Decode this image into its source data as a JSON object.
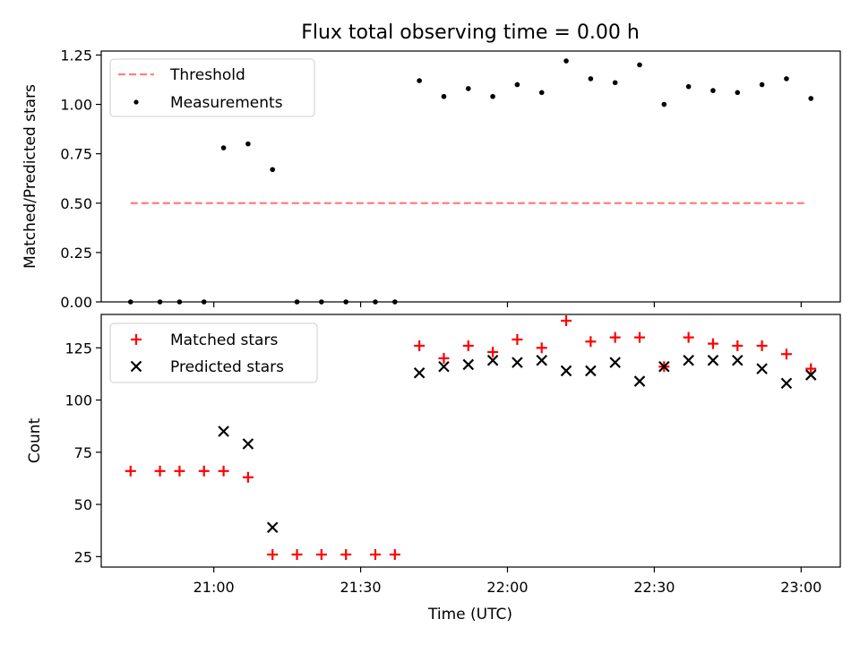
{
  "figure": {
    "title": "Flux total observing time = 0.00 h",
    "xlabel": "Time (UTC)"
  },
  "colors": {
    "threshold": "#ff7f7f",
    "measurement": "#000000",
    "matched": "#ff0000",
    "predicted": "#000000"
  },
  "chart_data": [
    {
      "type": "scatter",
      "title": "Flux total observing time = 0.00 h",
      "ylabel": "Matched/Predicted stars",
      "xlim": [
        "20:37",
        "23:08"
      ],
      "ylim": [
        0,
        1.27
      ],
      "yticks": [
        0.0,
        0.25,
        0.5,
        0.75,
        1.0,
        1.25
      ],
      "ytick_labels": [
        "0.00",
        "0.25",
        "0.50",
        "0.75",
        "1.00",
        "1.25"
      ],
      "legend": "upper-left",
      "threshold": {
        "name": "Threshold",
        "style": "dashed",
        "value": 0.5,
        "x": [
          "20:43",
          "23:01"
        ]
      },
      "series": [
        {
          "name": "Measurements",
          "marker": "dot",
          "x": [
            "20:43",
            "20:49",
            "20:53",
            "20:58",
            "21:02",
            "21:07",
            "21:12",
            "21:17",
            "21:22",
            "21:27",
            "21:33",
            "21:37",
            "21:42",
            "21:47",
            "21:52",
            "21:57",
            "22:02",
            "22:07",
            "22:12",
            "22:17",
            "22:22",
            "22:27",
            "22:32",
            "22:37",
            "22:42",
            "22:47",
            "22:52",
            "22:57",
            "23:02"
          ],
          "values": [
            0,
            0,
            0,
            0,
            0.78,
            0.8,
            0.67,
            0,
            0,
            0,
            0,
            0,
            1.12,
            1.04,
            1.08,
            1.04,
            1.1,
            1.06,
            1.22,
            1.13,
            1.11,
            1.2,
            1.0,
            1.09,
            1.07,
            1.06,
            1.1,
            1.13,
            1.03
          ]
        }
      ]
    },
    {
      "type": "scatter",
      "ylabel": "Count",
      "xlabel": "Time (UTC)",
      "xlim": [
        "20:37",
        "23:08"
      ],
      "ylim": [
        20,
        141
      ],
      "yticks": [
        25,
        50,
        75,
        100,
        125
      ],
      "xticks": [
        "21:00",
        "21:30",
        "22:00",
        "22:30",
        "23:00"
      ],
      "legend": "upper-left",
      "series": [
        {
          "name": "Matched stars",
          "marker": "plus",
          "x": [
            "20:43",
            "20:49",
            "20:53",
            "20:58",
            "21:02",
            "21:07",
            "21:12",
            "21:17",
            "21:22",
            "21:27",
            "21:33",
            "21:37",
            "21:42",
            "21:47",
            "21:52",
            "21:57",
            "22:02",
            "22:07",
            "22:12",
            "22:17",
            "22:22",
            "22:27",
            "22:32",
            "22:37",
            "22:42",
            "22:47",
            "22:52",
            "22:57",
            "23:02"
          ],
          "values": [
            66,
            66,
            66,
            66,
            66,
            63,
            26,
            26,
            26,
            26,
            26,
            26,
            126,
            120,
            126,
            123,
            129,
            125,
            138,
            128,
            130,
            130,
            116,
            130,
            127,
            126,
            126,
            122,
            115
          ]
        },
        {
          "name": "Predicted stars",
          "marker": "x",
          "x": [
            "21:02",
            "21:07",
            "21:12",
            "21:42",
            "21:47",
            "21:52",
            "21:57",
            "22:02",
            "22:07",
            "22:12",
            "22:17",
            "22:22",
            "22:27",
            "22:32",
            "22:37",
            "22:42",
            "22:47",
            "22:52",
            "22:57",
            "23:02"
          ],
          "values": [
            85,
            79,
            39,
            113,
            116,
            117,
            119,
            118,
            119,
            114,
            114,
            118,
            109,
            116,
            119,
            119,
            119,
            115,
            108,
            112
          ]
        }
      ]
    }
  ]
}
